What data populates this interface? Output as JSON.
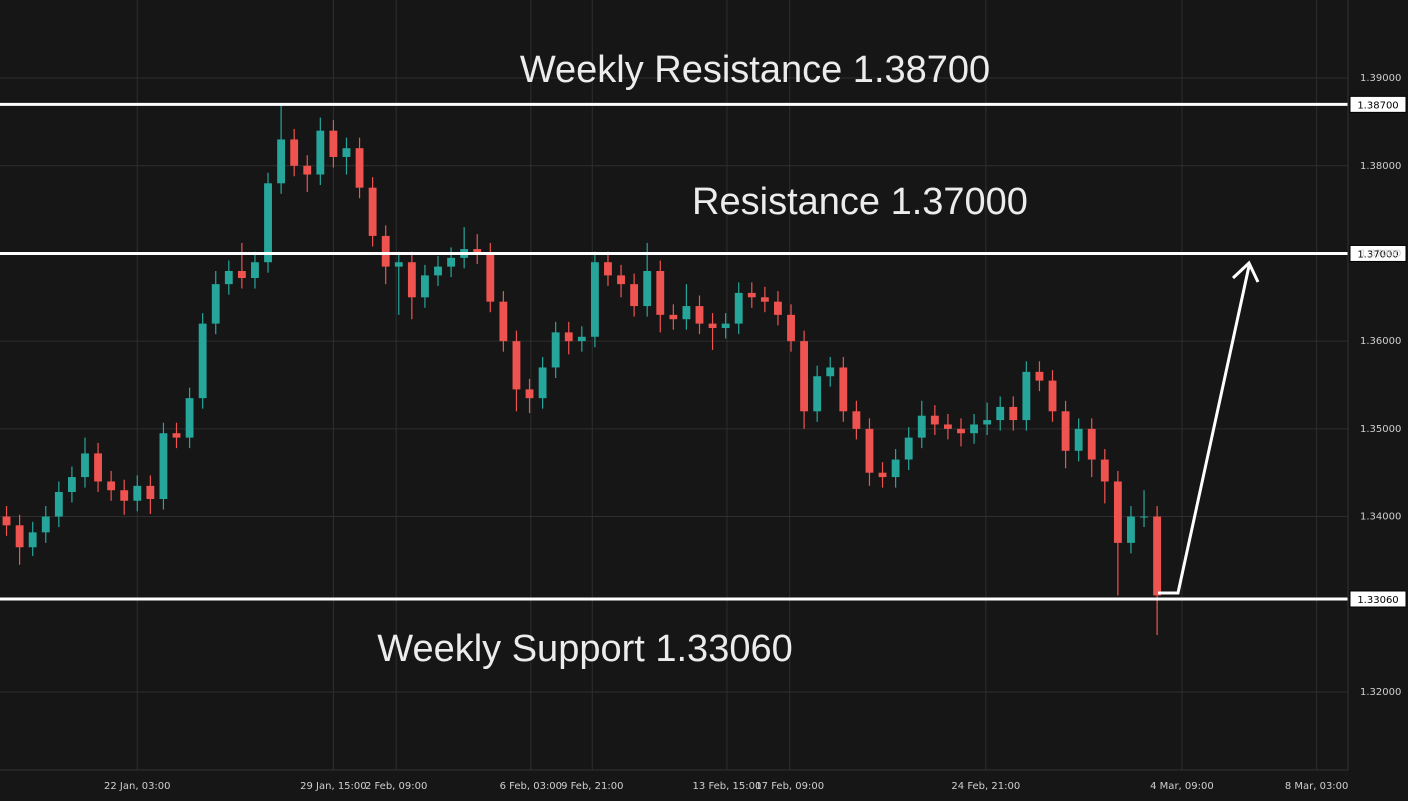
{
  "chart_data": {
    "type": "candlestick",
    "x": [
      0,
      1,
      2,
      3,
      4,
      5,
      6,
      7,
      8,
      9,
      10,
      11,
      12,
      13,
      14,
      15,
      16,
      17,
      18,
      19,
      20,
      21,
      22,
      23,
      24,
      25,
      26,
      27,
      28,
      29,
      30,
      31,
      32,
      33,
      34,
      35,
      36,
      37,
      38,
      39,
      40,
      41,
      42,
      43,
      44,
      45,
      46,
      47,
      48,
      49,
      50,
      51,
      52,
      53,
      54,
      55,
      56,
      57,
      58,
      59,
      60,
      61,
      62,
      63,
      64,
      65,
      66,
      67,
      68,
      69,
      70,
      71,
      72,
      73,
      74,
      75,
      76,
      77,
      78,
      79,
      80,
      81,
      82,
      83,
      84,
      85,
      86,
      87,
      88
    ],
    "open": [
      1.34,
      1.339,
      1.3365,
      1.3382,
      1.34,
      1.3428,
      1.3445,
      1.3472,
      1.344,
      1.343,
      1.3418,
      1.3435,
      1.342,
      1.3495,
      1.349,
      1.3535,
      1.362,
      1.3665,
      1.368,
      1.3672,
      1.369,
      1.378,
      1.383,
      1.38,
      1.379,
      1.384,
      1.381,
      1.382,
      1.3775,
      1.372,
      1.3685,
      1.369,
      1.365,
      1.3675,
      1.3685,
      1.3695,
      1.3705,
      1.37,
      1.3645,
      1.36,
      1.3545,
      1.3535,
      1.357,
      1.361,
      1.36,
      1.3605,
      1.369,
      1.3675,
      1.3665,
      1.364,
      1.368,
      1.363,
      1.3625,
      1.364,
      1.362,
      1.3615,
      1.362,
      1.3655,
      1.365,
      1.3645,
      1.363,
      1.36,
      1.352,
      1.356,
      1.357,
      1.352,
      1.35,
      1.345,
      1.3445,
      1.3465,
      1.349,
      1.3515,
      1.3505,
      1.35,
      1.3495,
      1.3505,
      1.351,
      1.3525,
      1.351,
      1.3565,
      1.3555,
      1.352,
      1.3475,
      1.35,
      1.3465,
      1.344,
      1.337,
      1.34,
      1.34
    ],
    "high": [
      1.3412,
      1.3402,
      1.3394,
      1.3412,
      1.344,
      1.3457,
      1.349,
      1.3484,
      1.3452,
      1.3442,
      1.3447,
      1.3447,
      1.3507,
      1.3507,
      1.3547,
      1.3632,
      1.368,
      1.3692,
      1.3712,
      1.3702,
      1.3792,
      1.387,
      1.3842,
      1.3812,
      1.3855,
      1.3852,
      1.3832,
      1.3832,
      1.3787,
      1.3732,
      1.3702,
      1.3702,
      1.3687,
      1.3697,
      1.3707,
      1.373,
      1.3722,
      1.3712,
      1.3657,
      1.3612,
      1.3557,
      1.3582,
      1.3622,
      1.3622,
      1.3617,
      1.3702,
      1.3702,
      1.3687,
      1.3677,
      1.3712,
      1.3692,
      1.3642,
      1.3665,
      1.3652,
      1.3632,
      1.3632,
      1.3667,
      1.3667,
      1.3662,
      1.3657,
      1.3642,
      1.3612,
      1.3572,
      1.3582,
      1.3582,
      1.3532,
      1.3512,
      1.3462,
      1.3477,
      1.3502,
      1.3532,
      1.3527,
      1.3517,
      1.3512,
      1.3517,
      1.353,
      1.3537,
      1.3537,
      1.3577,
      1.3577,
      1.3567,
      1.3532,
      1.3512,
      1.3512,
      1.3477,
      1.3452,
      1.3412,
      1.343,
      1.3412
    ],
    "low": [
      1.3378,
      1.3345,
      1.3355,
      1.337,
      1.3388,
      1.3416,
      1.3433,
      1.3428,
      1.3418,
      1.3402,
      1.3406,
      1.3403,
      1.3408,
      1.3478,
      1.3478,
      1.3523,
      1.3608,
      1.3653,
      1.366,
      1.366,
      1.3678,
      1.3768,
      1.3788,
      1.377,
      1.3778,
      1.3798,
      1.379,
      1.3763,
      1.3708,
      1.3665,
      1.363,
      1.3625,
      1.3638,
      1.3663,
      1.3673,
      1.3683,
      1.3688,
      1.3633,
      1.3588,
      1.352,
      1.3518,
      1.3523,
      1.3558,
      1.3585,
      1.3588,
      1.3593,
      1.3663,
      1.365,
      1.3628,
      1.3628,
      1.361,
      1.3613,
      1.3613,
      1.3608,
      1.359,
      1.3603,
      1.3608,
      1.3638,
      1.3633,
      1.3618,
      1.3588,
      1.35,
      1.3508,
      1.3548,
      1.3508,
      1.3488,
      1.3435,
      1.3433,
      1.3433,
      1.3453,
      1.3478,
      1.3493,
      1.3488,
      1.348,
      1.3483,
      1.3493,
      1.3498,
      1.3498,
      1.3498,
      1.3543,
      1.3508,
      1.3455,
      1.3463,
      1.3445,
      1.3415,
      1.331,
      1.3358,
      1.3388,
      1.3265
    ],
    "close": [
      1.339,
      1.3365,
      1.3382,
      1.34,
      1.3428,
      1.3445,
      1.3472,
      1.344,
      1.343,
      1.3418,
      1.3435,
      1.342,
      1.3495,
      1.349,
      1.3535,
      1.362,
      1.3665,
      1.368,
      1.3672,
      1.369,
      1.378,
      1.383,
      1.38,
      1.379,
      1.384,
      1.381,
      1.382,
      1.3775,
      1.372,
      1.3685,
      1.369,
      1.365,
      1.3675,
      1.3685,
      1.3695,
      1.3705,
      1.37,
      1.3645,
      1.36,
      1.3545,
      1.3535,
      1.357,
      1.361,
      1.36,
      1.3605,
      1.369,
      1.3675,
      1.3665,
      1.364,
      1.368,
      1.363,
      1.3625,
      1.364,
      1.362,
      1.3615,
      1.362,
      1.3655,
      1.365,
      1.3645,
      1.363,
      1.36,
      1.352,
      1.356,
      1.357,
      1.352,
      1.35,
      1.345,
      1.3445,
      1.3465,
      1.349,
      1.3515,
      1.3505,
      1.35,
      1.3495,
      1.3505,
      1.351,
      1.3525,
      1.351,
      1.3565,
      1.3555,
      1.352,
      1.3475,
      1.35,
      1.3465,
      1.344,
      1.337,
      1.34,
      1.34,
      1.331
    ],
    "up_color": "#26a69a",
    "down_color": "#ef5350",
    "xlim": [
      -0.5,
      102.6
    ],
    "ylim": [
      1.3111,
      1.3989
    ],
    "xticks": [
      {
        "value": 10.0,
        "label": "22 Jan, 03:00"
      },
      {
        "value": 25.0,
        "label": "29 Jan, 15:00"
      },
      {
        "value": 29.8,
        "label": "2 Feb, 09:00"
      },
      {
        "value": 40.1,
        "label": "6 Feb, 03:00"
      },
      {
        "value": 44.8,
        "label": "9 Feb, 21:00"
      },
      {
        "value": 55.1,
        "label": "13 Feb, 15:00"
      },
      {
        "value": 59.9,
        "label": "17 Feb, 09:00"
      },
      {
        "value": 74.9,
        "label": "24 Feb, 21:00"
      },
      {
        "value": 89.9,
        "label": "4 Mar, 09:00"
      },
      {
        "value": 100.2,
        "label": "8 Mar, 03:00"
      }
    ],
    "yticks": [
      {
        "value": 1.39,
        "label": "1.39000"
      },
      {
        "value": 1.38,
        "label": "1.38000"
      },
      {
        "value": 1.37,
        "label": "1.37000"
      },
      {
        "value": 1.36,
        "label": "1.36000"
      },
      {
        "value": 1.35,
        "label": "1.35000"
      },
      {
        "value": 1.34,
        "label": "1.34000"
      },
      {
        "value": 1.32,
        "label": "1.32000"
      }
    ],
    "grid": true,
    "levels": [
      {
        "value": 1.387,
        "label": "1.38700",
        "text": "Weekly Resistance 1.38700"
      },
      {
        "value": 1.37,
        "label": "1.37000",
        "text": "Resistance 1.37000"
      },
      {
        "value": 1.3306,
        "label": "1.33060",
        "text": "Weekly Support 1.33060"
      }
    ],
    "level_color": "#ffffff"
  }
}
